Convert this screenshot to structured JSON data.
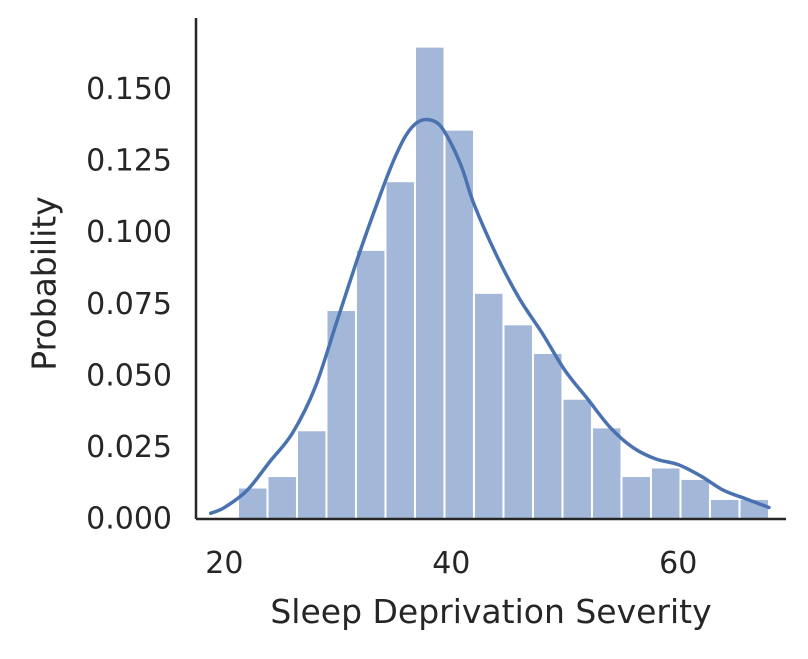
{
  "chart_data": {
    "type": "histogram",
    "title": "",
    "xlabel": "Sleep Deprivation Severity",
    "ylabel": "Probability",
    "xlim": [
      17.5,
      69.5
    ],
    "ylim": [
      0,
      0.175
    ],
    "xticks": [
      20,
      40,
      60
    ],
    "yticks": [
      0.0,
      0.025,
      0.05,
      0.075,
      0.1,
      0.125,
      0.15
    ],
    "ytick_labels": [
      "0.000",
      "0.025",
      "0.050",
      "0.075",
      "0.100",
      "0.125",
      "0.150"
    ],
    "xtick_labels": [
      "20",
      "40",
      "60"
    ],
    "bin_edges": [
      21.2,
      23.8,
      26.4,
      29.0,
      31.6,
      34.2,
      36.8,
      39.4,
      42.0,
      44.6,
      47.2,
      49.8,
      52.4,
      55.0,
      57.6,
      60.2,
      62.8,
      65.4,
      68.0
    ],
    "values": [
      0.011,
      0.015,
      0.031,
      0.073,
      0.094,
      0.118,
      0.165,
      0.136,
      0.079,
      0.068,
      0.058,
      0.042,
      0.032,
      0.015,
      0.018,
      0.014,
      0.007,
      0.007
    ],
    "kde": {
      "x": [
        18.8,
        20,
        22,
        24,
        26,
        28,
        30,
        32,
        34,
        35,
        36,
        37,
        38,
        39,
        40,
        41,
        42,
        44,
        46,
        48,
        50,
        52,
        54,
        56,
        58,
        60,
        62,
        64,
        66,
        68
      ],
      "y": [
        0.002,
        0.004,
        0.01,
        0.02,
        0.03,
        0.046,
        0.07,
        0.094,
        0.116,
        0.126,
        0.134,
        0.1385,
        0.1395,
        0.1375,
        0.131,
        0.122,
        0.11,
        0.092,
        0.077,
        0.065,
        0.052,
        0.042,
        0.032,
        0.025,
        0.021,
        0.019,
        0.015,
        0.01,
        0.007,
        0.004
      ]
    },
    "grid": false,
    "legend": "none",
    "colors": {
      "bar": "#a3b8d9",
      "kde": "#4a72b0",
      "axis": "#262626"
    }
  }
}
